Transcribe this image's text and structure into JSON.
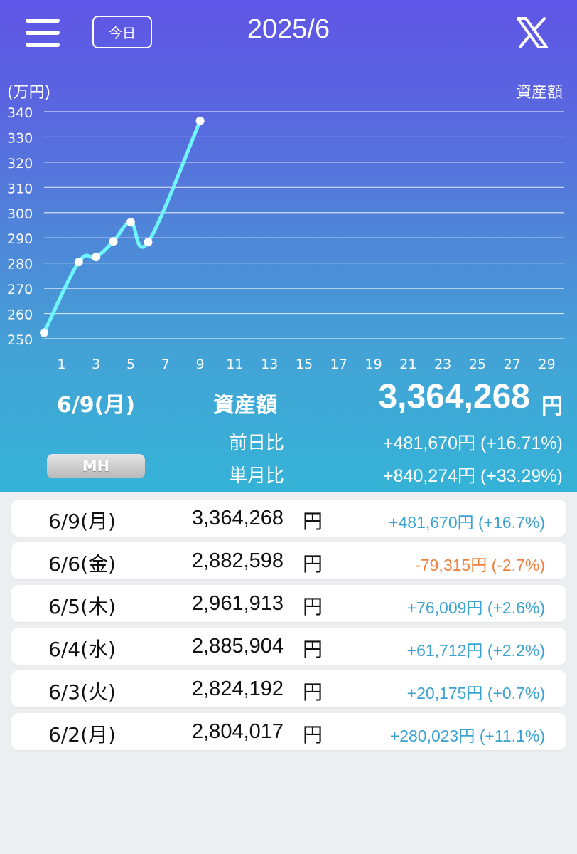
{
  "header": {
    "today_label": "今日",
    "month_title": "2025/6"
  },
  "chart_data": {
    "type": "line",
    "ylabel": "(万円)",
    "legend": "資産額",
    "ylim": [
      250,
      340
    ],
    "yticks": [
      340,
      330,
      320,
      310,
      300,
      290,
      280,
      270,
      260,
      250
    ],
    "xlim": [
      0,
      30
    ],
    "xticks": [
      1,
      3,
      5,
      7,
      9,
      11,
      13,
      15,
      17,
      19,
      21,
      23,
      25,
      27,
      29
    ],
    "series": [
      {
        "x": [
          0,
          2,
          3,
          4,
          5,
          6,
          9
        ],
        "y": [
          252.4,
          280.4,
          282.4,
          288.6,
          296.2,
          288.3,
          336.4
        ]
      }
    ],
    "colors": {
      "line": "#6ff5ff",
      "point": "#ffffff",
      "grid": "#ffffff"
    }
  },
  "summary": {
    "date": "6/9(月)",
    "label": "資産額",
    "value": "3,364,268",
    "unit": "円",
    "prev_day_label": "前日比",
    "prev_day_value": "+481,670円 (+16.71%)",
    "month_label": "単月比",
    "month_value": "+840,274円 (+33.29%)",
    "mh_button": "MH"
  },
  "rows": [
    {
      "date": "6/9(月)",
      "amount": "3,364,268",
      "unit": "円",
      "change": "+481,670円 (+16.7%)",
      "positive": true
    },
    {
      "date": "6/6(金)",
      "amount": "2,882,598",
      "unit": "円",
      "change": "-79,315円 (-2.7%)",
      "positive": false
    },
    {
      "date": "6/5(木)",
      "amount": "2,961,913",
      "unit": "円",
      "change": "+76,009円 (+2.6%)",
      "positive": true
    },
    {
      "date": "6/4(水)",
      "amount": "2,885,904",
      "unit": "円",
      "change": "+61,712円 (+2.2%)",
      "positive": true
    },
    {
      "date": "6/3(火)",
      "amount": "2,824,192",
      "unit": "円",
      "change": "+20,175円 (+0.7%)",
      "positive": true
    },
    {
      "date": "6/2(月)",
      "amount": "2,804,017",
      "unit": "円",
      "change": "+280,023円 (+11.1%)",
      "positive": true
    }
  ],
  "colors": {
    "positive": "#3aa3d2",
    "negative": "#f08040"
  }
}
